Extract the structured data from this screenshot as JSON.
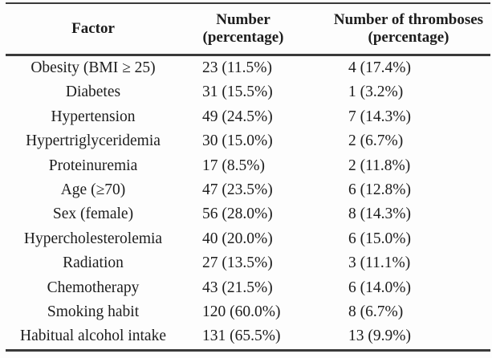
{
  "colors": {
    "bg": "#fdfdfd",
    "text": "#1d1d1d",
    "rule": "#3a3a3a"
  },
  "table": {
    "columns": [
      {
        "label": "Factor"
      },
      {
        "label": "Number (percentage)"
      },
      {
        "label": "Number of thromboses",
        "sublabel": "(percentage)"
      }
    ],
    "rows": [
      [
        "Obesity (BMI ≥ 25)",
        "23 (11.5%)",
        "4 (17.4%)"
      ],
      [
        "Diabetes",
        "31 (15.5%)",
        "1 (3.2%)"
      ],
      [
        "Hypertension",
        "49 (24.5%)",
        "7 (14.3%)"
      ],
      [
        "Hypertriglyceridemia",
        "30 (15.0%)",
        "2 (6.7%)"
      ],
      [
        "Proteinuremia",
        "17 (8.5%)",
        "2 (11.8%)"
      ],
      [
        "Age (≥70)",
        "47 (23.5%)",
        "6 (12.8%)"
      ],
      [
        "Sex (female)",
        "56 (28.0%)",
        "8 (14.3%)"
      ],
      [
        "Hypercholesterolemia",
        "40 (20.0%)",
        "6 (15.0%)"
      ],
      [
        "Radiation",
        "27 (13.5%)",
        "3 (11.1%)"
      ],
      [
        "Chemotherapy",
        "43 (21.5%)",
        "6 (14.0%)"
      ],
      [
        "Smoking habit",
        "120 (60.0%)",
        "8 (6.7%)"
      ],
      [
        "Habitual alcohol intake",
        "131 (65.5%)",
        "13 (9.9%)"
      ]
    ]
  }
}
